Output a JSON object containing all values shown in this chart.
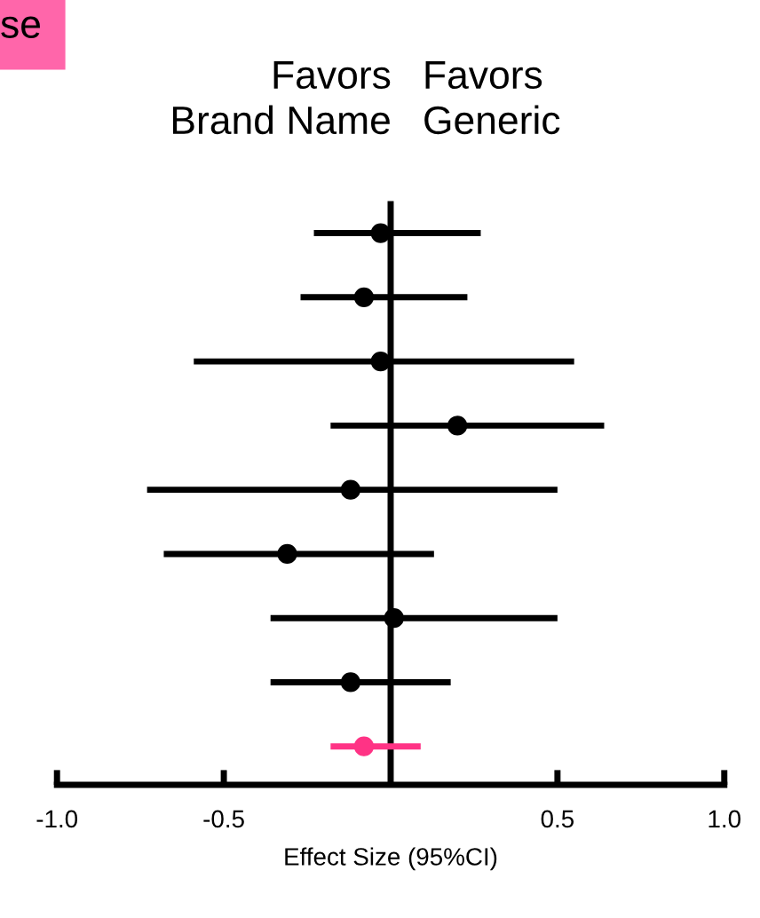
{
  "chart_data": {
    "type": "scatter",
    "orientation": "horizontal",
    "xlabel": "Effect Size (95%CI)",
    "categories": [
      null,
      null,
      null,
      null,
      null,
      null,
      null,
      null,
      null
    ],
    "series": [
      {
        "color": "#000000",
        "values": [
          -0.03,
          -0.08,
          -0.03,
          0.2,
          -0.12,
          -0.31,
          0.01,
          -0.12,
          null
        ],
        "errors": [
          [
            -0.23,
            0.27
          ],
          [
            -0.27,
            0.23
          ],
          [
            -0.59,
            0.55
          ],
          [
            -0.18,
            0.64
          ],
          [
            -0.73,
            0.5
          ],
          [
            -0.68,
            0.13
          ],
          [
            -0.36,
            0.5
          ],
          [
            -0.36,
            0.18
          ],
          null
        ]
      },
      {
        "color": "#ff3385",
        "values": [
          null,
          null,
          null,
          null,
          null,
          null,
          null,
          null,
          -0.08
        ],
        "errors": [
          null,
          null,
          null,
          null,
          null,
          null,
          null,
          null,
          [
            -0.18,
            0.09
          ]
        ]
      }
    ],
    "xlim": [
      -1.0,
      1.0
    ],
    "xticks": [
      {
        "value": -1.0,
        "label": "-1.0"
      },
      -0.5,
      0.5,
      {
        "value": 1.0,
        "label": "1.0"
      }
    ],
    "tick_labels": "x",
    "grid": false,
    "marker": "circle",
    "ref_lines": [
      {
        "axis": "x",
        "value": 0,
        "color": "#000000"
      }
    ],
    "annotations": [
      "Favors\nBrand Name",
      "Favors\nGeneric",
      "se"
    ]
  }
}
